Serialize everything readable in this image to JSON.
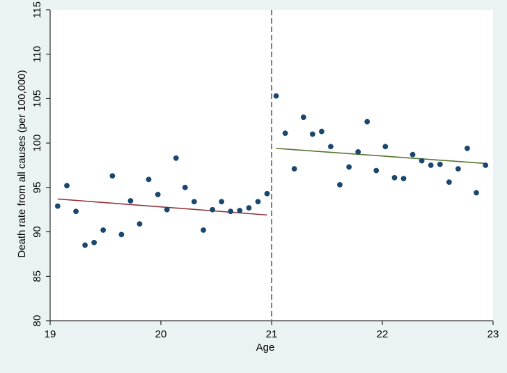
{
  "chart_data": {
    "type": "scatter",
    "title": "",
    "xlabel": "Age",
    "ylabel": "Death rate from all causes (per 100,000)",
    "xlim": [
      19,
      23
    ],
    "ylim": [
      80,
      115
    ],
    "xticks": [
      19,
      20,
      21,
      22,
      23
    ],
    "yticks": [
      80,
      85,
      90,
      95,
      100,
      105,
      110,
      115
    ],
    "grid": false,
    "legend": "none",
    "cutoff_x": 21,
    "colors": {
      "background": "#eaf2f3",
      "plot_area": "#ffffff",
      "points": "#1a476f",
      "fit_left": "#90353b",
      "fit_right": "#55752f",
      "cutoff_line": "#808080"
    },
    "series": [
      {
        "type": "scatter",
        "x": [
          19.068,
          19.151,
          19.233,
          19.315,
          19.397,
          19.479,
          19.562,
          19.644,
          19.726,
          19.808,
          19.89,
          19.973,
          20.055,
          20.137,
          20.219,
          20.301,
          20.384,
          20.466,
          20.548,
          20.63,
          20.712,
          20.795,
          20.877,
          20.959,
          21.041,
          21.123,
          21.205,
          21.288,
          21.37,
          21.452,
          21.534,
          21.616,
          21.699,
          21.781,
          21.863,
          21.945,
          22.027,
          22.11,
          22.192,
          22.274,
          22.356,
          22.438,
          22.521,
          22.603,
          22.685,
          22.767,
          22.849,
          22.932
        ],
        "y": [
          92.9,
          95.2,
          92.3,
          88.5,
          88.8,
          90.2,
          96.3,
          89.7,
          93.5,
          90.9,
          95.9,
          94.2,
          92.5,
          98.3,
          95.0,
          93.4,
          90.2,
          92.5,
          93.4,
          92.3,
          92.4,
          92.7,
          93.4,
          94.3,
          105.3,
          101.1,
          97.1,
          102.9,
          101.0,
          101.3,
          99.6,
          95.3,
          97.3,
          99.0,
          102.4,
          96.9,
          99.6,
          96.1,
          96.0,
          98.7,
          98.0,
          97.5,
          97.6,
          95.6,
          97.1,
          99.4,
          94.4,
          97.5
        ]
      },
      {
        "type": "line",
        "name": "",
        "x": [
          19.068,
          20.959
        ],
        "y": [
          93.7,
          91.9
        ]
      },
      {
        "type": "line",
        "name": "",
        "x": [
          21.041,
          22.932
        ],
        "y": [
          99.4,
          97.7
        ]
      }
    ]
  }
}
